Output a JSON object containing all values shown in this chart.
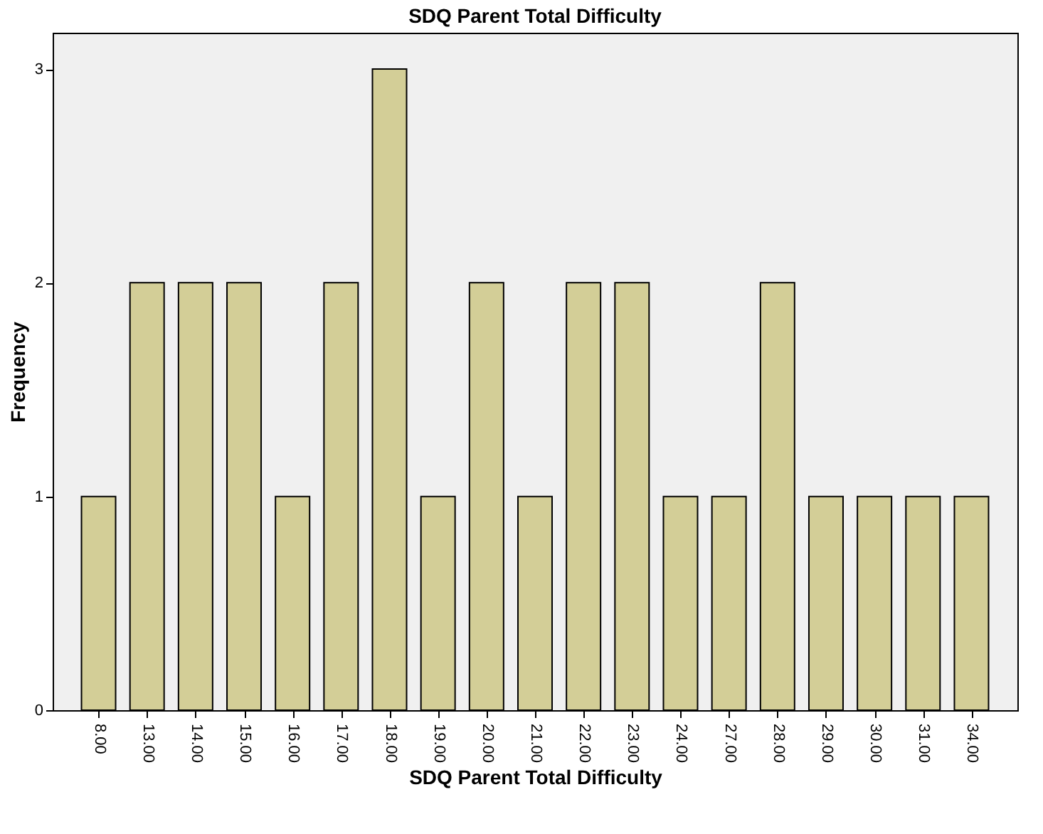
{
  "chart_data": {
    "type": "bar",
    "title": "SDQ Parent Total Difficulty",
    "xlabel": "SDQ Parent Total Difficulty",
    "ylabel": "Frequency",
    "categories": [
      "8.00",
      "13.00",
      "14.00",
      "15.00",
      "16.00",
      "17.00",
      "18.00",
      "19.00",
      "20.00",
      "21.00",
      "22.00",
      "23.00",
      "24.00",
      "27.00",
      "28.00",
      "29.00",
      "30.00",
      "31.00",
      "34.00"
    ],
    "values": [
      1,
      2,
      2,
      2,
      1,
      2,
      3,
      1,
      2,
      1,
      2,
      2,
      1,
      1,
      2,
      1,
      1,
      1,
      1
    ],
    "color": "#d3ce97",
    "ylim": [
      0,
      3.17
    ],
    "yticks": [
      0,
      1,
      2,
      3
    ],
    "grid": false
  }
}
